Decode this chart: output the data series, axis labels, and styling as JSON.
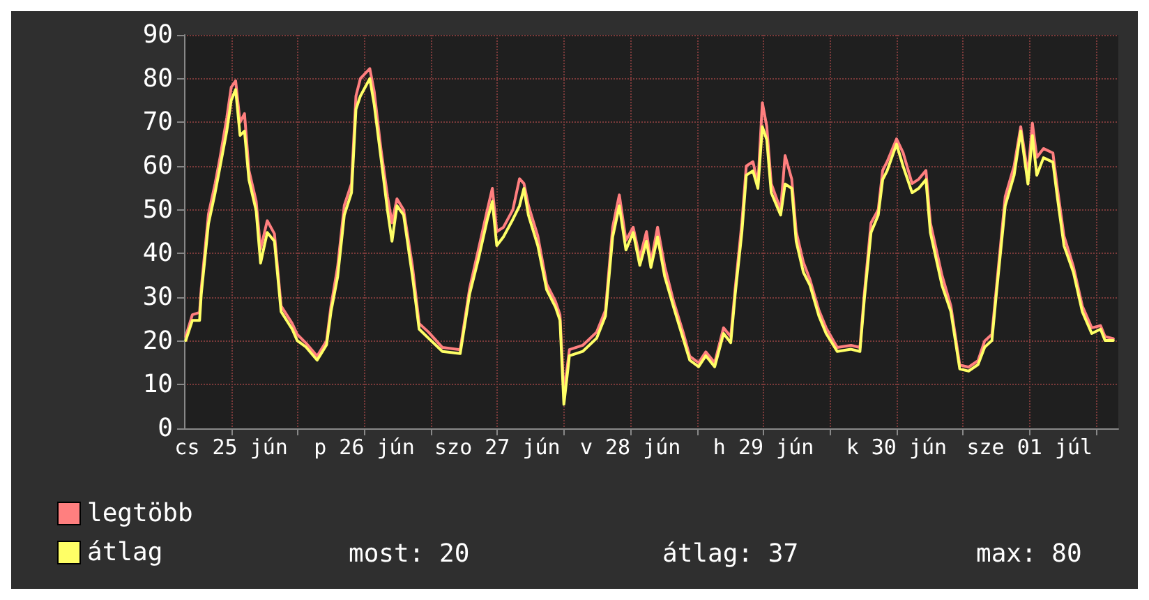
{
  "chart_data": {
    "type": "line",
    "x": [
      "--06-25T03:48",
      "--06-25T05:00",
      "--06-25T06:18",
      "--06-25T06:36",
      "--06-25T07:54",
      "--06-25T09:06",
      "--06-25T10:00",
      "--06-25T11:12",
      "--06-25T12:00",
      "--06-25T12:48",
      "--06-25T13:36",
      "--06-25T14:24",
      "--06-25T15:12",
      "--06-25T16:30",
      "--06-25T17:18",
      "--06-25T18:30",
      "--06-25T19:48",
      "--06-25T21:00",
      "--06-25T23:00",
      "--06-25T23:54",
      "--06-26T01:30",
      "--06-26T03:30",
      "--06-26T05:12",
      "--06-26T06:00",
      "--06-26T07:12",
      "--06-26T08:24",
      "--06-26T09:42",
      "--06-26T10:30",
      "--06-26T11:18",
      "--06-26T13:00",
      "--06-26T13:48",
      "--06-26T15:00",
      "--06-26T16:12",
      "--06-26T17:00",
      "--06-26T17:54",
      "--06-26T19:06",
      "--06-26T20:42",
      "--06-26T21:54",
      "--06-26T23:36",
      "--06-27T02:06",
      "--06-27T05:18",
      "--06-27T07:00",
      "--06-27T08:36",
      "--06-27T10:12",
      "--06-27T11:06",
      "--06-27T11:54",
      "--06-27T13:06",
      "--06-27T14:48",
      "--06-27T16:00",
      "--06-27T16:48",
      "--06-27T17:36",
      "--06-27T19:18",
      "--06-27T20:54",
      "--06-27T22:30",
      "--06-27T23:18",
      "--06-28T00:00",
      "--06-28T01:00",
      "--06-28T03:24",
      "--06-28T05:54",
      "--06-28T07:30",
      "--06-28T08:48",
      "--06-28T10:00",
      "--06-28T11:12",
      "--06-28T12:30",
      "--06-28T13:42",
      "--06-28T14:54",
      "--06-28T15:42",
      "--06-28T16:54",
      "--06-28T18:12",
      "--06-28T19:48",
      "--06-28T21:30",
      "--06-28T22:42",
      "--06-29T00:18",
      "--06-29T01:36",
      "--06-29T03:12",
      "--06-29T04:48",
      "--06-29T06:06",
      "--06-29T06:54",
      "--06-29T08:06",
      "--06-29T08:54",
      "--06-29T10:06",
      "--06-29T11:00",
      "--06-29T11:48",
      "--06-29T12:36",
      "--06-29T13:24",
      "--06-29T15:06",
      "--06-29T15:54",
      "--06-29T17:06",
      "--06-29T17:54",
      "--06-29T19:12",
      "--06-29T20:24",
      "--06-29T22:00",
      "--06-29T23:18",
      "--06-30T01:18",
      "--06-30T03:48",
      "--06-30T05:24",
      "--06-30T06:12",
      "--06-30T07:24",
      "--06-30T08:42",
      "--06-30T09:30",
      "--06-30T10:18",
      "--06-30T12:00",
      "--06-30T13:12",
      "--06-30T14:48",
      "--06-30T16:00",
      "--06-30T17:18",
      "--06-30T18:06",
      "--06-30T20:12",
      "--06-30T21:48",
      "--06-30T23:24",
      "--07-01T01:00",
      "--07-01T02:42",
      "--07-01T03:54",
      "--07-01T05:12",
      "--07-01T06:00",
      "--07-01T07:36",
      "--07-01T09:12",
      "--07-01T10:24",
      "--07-01T11:42",
      "--07-01T12:30",
      "--07-01T13:18",
      "--07-01T14:30",
      "--07-01T16:12",
      "--07-01T17:00",
      "--07-01T18:12",
      "--07-01T19:54",
      "--07-01T21:30",
      "--07-01T23:12",
      "--07-02T00:48",
      "--07-02T01:36",
      "--07-02T03:06"
    ],
    "series": [
      {
        "name": "legtöbb",
        "color": "#ff7f7f",
        "values": [
          21,
          26,
          26.5,
          32,
          49,
          56,
          62,
          71,
          78,
          79.5,
          70,
          72,
          59,
          52,
          41,
          47.5,
          44.5,
          28,
          24,
          21.5,
          19.5,
          16.5,
          20,
          28,
          37,
          51,
          56,
          76,
          80,
          82.3,
          77,
          64,
          53,
          47,
          52.5,
          50,
          37,
          24,
          22,
          18.5,
          18,
          32,
          41,
          50,
          54.9,
          45,
          46,
          50,
          57.1,
          56,
          51,
          44,
          33,
          29,
          26,
          8,
          18,
          19,
          22,
          27,
          46,
          53.4,
          43,
          46,
          39,
          45,
          38,
          46,
          37,
          29,
          22,
          16.5,
          15,
          17.5,
          15,
          23,
          21,
          32,
          47,
          60,
          61,
          56,
          74.5,
          69,
          56,
          50,
          62.4,
          57,
          45,
          38,
          34,
          27,
          23,
          18.5,
          19,
          18.5,
          31,
          47,
          50,
          59,
          61,
          66.2,
          63,
          56,
          57,
          59,
          47,
          35,
          28,
          14.5,
          14,
          15.5,
          20,
          21.5,
          32,
          53,
          60,
          69,
          58,
          69.8,
          62,
          64,
          63,
          55,
          44,
          37,
          28,
          23,
          23.5,
          21,
          20.5
        ]
      },
      {
        "name": "átlag",
        "color": "#ffff66",
        "values": [
          20.1,
          24.7,
          24.7,
          30.7,
          46.8,
          53.9,
          59.9,
          68,
          75,
          77.5,
          67,
          68,
          56.9,
          49.8,
          37.8,
          44.8,
          42.8,
          26.7,
          22.7,
          20.1,
          18.6,
          15.6,
          19.1,
          26.7,
          34.7,
          48.8,
          53.9,
          73,
          76,
          80,
          74,
          62,
          49.8,
          42.8,
          50.9,
          48.8,
          34.7,
          22.7,
          20.6,
          17.6,
          17.1,
          30.7,
          38.8,
          47.8,
          51.9,
          41.8,
          43.8,
          47.8,
          50.9,
          54.9,
          48.8,
          41.8,
          31.7,
          27.7,
          24.7,
          5.5,
          16.6,
          17.6,
          20.6,
          25.7,
          43.8,
          50.9,
          40.8,
          44.8,
          37.3,
          42.8,
          36.8,
          43.8,
          34.7,
          27.7,
          20.6,
          15.6,
          14.1,
          16.6,
          14.1,
          21.7,
          19.6,
          30.7,
          44.8,
          57.9,
          58.9,
          54.9,
          69,
          66,
          53.9,
          48.8,
          55.9,
          54.9,
          42.8,
          35.7,
          32.7,
          25.7,
          21.7,
          17.6,
          18.1,
          17.6,
          29.7,
          44.8,
          48.8,
          56.9,
          58.9,
          65,
          59.9,
          53.9,
          54.9,
          56.9,
          44.8,
          32.7,
          26.7,
          13.6,
          13.1,
          14.6,
          18.6,
          20.1,
          30.7,
          50.9,
          57.9,
          68,
          55.9,
          67,
          57.9,
          61.9,
          60.9,
          52.9,
          41.8,
          35.7,
          26.7,
          21.7,
          22.7,
          20.1,
          20.1
        ]
      }
    ],
    "xlim": [
      "--06-25T03:30",
      "--07-02T04:00"
    ],
    "xticks": [
      {
        "value": "--06-25T12:00",
        "label": "cs 25 jún"
      },
      {
        "value": "--06-26T00:00",
        "label": null
      },
      {
        "value": "--06-26T12:00",
        "label": "p 26 jún"
      },
      {
        "value": "--06-27T00:00",
        "label": null
      },
      {
        "value": "--06-27T12:00",
        "label": "szo 27 jún"
      },
      {
        "value": "--06-28T00:00",
        "label": null
      },
      {
        "value": "--06-28T12:00",
        "label": "v 28 jún"
      },
      {
        "value": "--06-29T00:00",
        "label": null
      },
      {
        "value": "--06-29T12:00",
        "label": "h 29 jún"
      },
      {
        "value": "--06-30T00:00",
        "label": null
      },
      {
        "value": "--06-30T12:00",
        "label": "k 30 jún"
      },
      {
        "value": "--07-01T00:00",
        "label": null
      },
      {
        "value": "--07-01T12:00",
        "label": "sze 01 júl"
      },
      {
        "value": "--07-02T00:00",
        "label": null
      }
    ],
    "ylim": [
      0,
      90
    ],
    "yticks": [
      0,
      10,
      20,
      30,
      40,
      50,
      60,
      70,
      80,
      90
    ],
    "grid": true,
    "legend": "bottom left",
    "marker": "none",
    "annotations": [
      "most: 20",
      "átlag: 37",
      "max: 80"
    ]
  }
}
